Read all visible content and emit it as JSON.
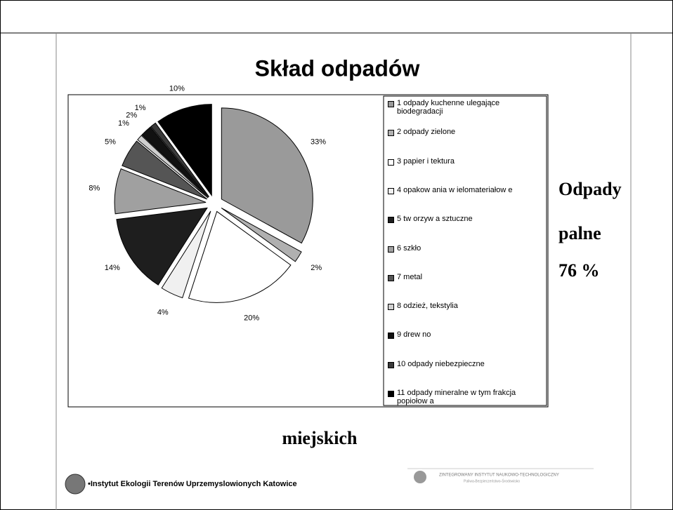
{
  "chart_data": {
    "type": "pie",
    "title": "Skład odpadów",
    "categories": [
      "1 odpady kuchenne ulegające biodegradacji",
      "2 odpady zielone",
      "3 papier i tektura",
      "4 opakow ania w ielomateriałow e",
      "5 tw orzyw a sztuczne",
      "6 szkło",
      "7 metal",
      "8 odzież, tekstylia",
      "9 drew no",
      "10 odpady niebezpieczne",
      "11 odpady mineralne w tym frakcja popiołow a"
    ],
    "values": [
      33,
      2,
      20,
      4,
      14,
      8,
      5,
      1,
      2,
      1,
      10
    ],
    "value_labels": [
      "33%",
      "2%",
      "20%",
      "4%",
      "14%",
      "8%",
      "5%",
      "1%",
      "2%",
      "1%",
      "10%"
    ],
    "colors": [
      "#9a9a9a",
      "#b0b0b0",
      "#ffffff",
      "#f0f0f0",
      "#1e1e1e",
      "#a0a0a0",
      "#555555",
      "#cfcfcf",
      "#111111",
      "#3a3a3a",
      "#000000"
    ],
    "legend": "right"
  },
  "side_text": [
    "Odpady",
    "palne",
    "76 %"
  ],
  "subtitle": "miejskich",
  "footer": {
    "institute": "•Instytut Ekologii Terenów Uprzemyslowionych Katowice",
    "logo_title": "ZINTEGROWANY INSTYTUT NAUKOWO-TECHNOLOGICZNY",
    "logo_subtitle": "Paliwa-Bezpieczeństwo-Środowisko"
  }
}
